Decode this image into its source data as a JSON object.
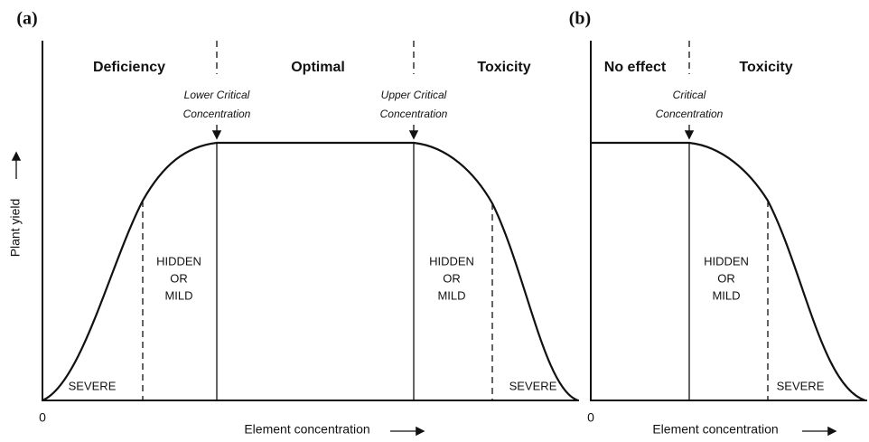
{
  "panels": [
    {
      "label": "(a)",
      "zones": [
        "Deficiency",
        "Optimal",
        "Toxicity"
      ],
      "critical": [
        [
          "Lower Critical",
          "Concentration"
        ],
        [
          "Upper Critical",
          "Concentration"
        ]
      ],
      "hidden": [
        [
          "HIDDEN",
          "OR",
          "MILD"
        ],
        [
          "HIDDEN",
          "OR",
          "MILD"
        ]
      ],
      "severe": [
        "SEVERE",
        "SEVERE"
      ],
      "origin": 0,
      "x_label": "Element concentration",
      "y_label": "Plant yield"
    },
    {
      "label": "(b)",
      "zones": [
        "No effect",
        "Toxicity"
      ],
      "critical": [
        [
          "Critical",
          "Concentration"
        ]
      ],
      "hidden": [
        [
          "HIDDEN",
          "OR",
          "MILD"
        ]
      ],
      "severe": [
        "SEVERE"
      ],
      "origin": 0,
      "x_label": "Element concentration"
    }
  ]
}
